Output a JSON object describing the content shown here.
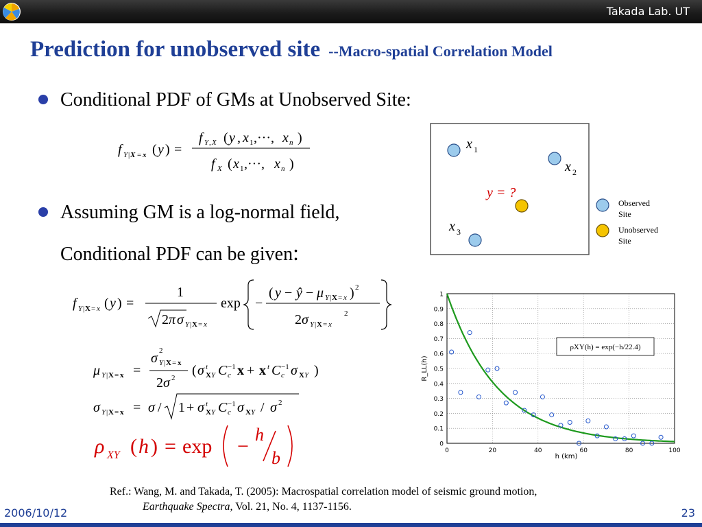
{
  "header": {
    "lab_name": "Takada Lab. UT"
  },
  "title": {
    "main": "Prediction for unobserved site",
    "sub": "--Macro-spatial Correlation Model"
  },
  "bullets": [
    "Conditional PDF of GMs at Unobserved Site:",
    "Assuming GM is a log-normal field,"
  ],
  "continuation": "Conditional PDF can be given",
  "continuation_colon": ":",
  "site_diagram": {
    "labels": {
      "x1": "x",
      "x1_sub": "1",
      "x2": "x",
      "x2_sub": "2",
      "x3": "x",
      "x3_sub": "3",
      "y": "y = ?"
    },
    "legend": [
      {
        "label_line1": "Observed",
        "label_line2": "Site",
        "color": "#9ccbec"
      },
      {
        "label_line1": "Unobserved",
        "label_line2": "Site",
        "color": "#f5c400"
      }
    ]
  },
  "chart_data": {
    "type": "scatter",
    "xlabel": "h (km)",
    "ylabel": "R_LL(h)",
    "x_ticks": [
      "0",
      "20",
      "40",
      "60",
      "80",
      "100"
    ],
    "y_ticks": [
      "0",
      "0.1",
      "0.2",
      "0.3",
      "0.4",
      "0.5",
      "0.6",
      "0.7",
      "0.8",
      "0.9",
      "1"
    ],
    "xlim": [
      0,
      100
    ],
    "ylim": [
      0,
      1
    ],
    "grid": "dotted",
    "annotation": "ρXY(h) = exp(−h/22.4)",
    "series": [
      {
        "kind": "points",
        "color": "#2255cc",
        "x": [
          2,
          6,
          10,
          14,
          18,
          22,
          26,
          30,
          34,
          38,
          42,
          46,
          50,
          54,
          58,
          62,
          66,
          70,
          74,
          78,
          82,
          86,
          90,
          94
        ],
        "y": [
          0.61,
          0.34,
          0.74,
          0.31,
          0.49,
          0.5,
          0.27,
          0.34,
          0.22,
          0.19,
          0.31,
          0.19,
          0.12,
          0.14,
          0.0,
          0.15,
          0.05,
          0.11,
          0.03,
          0.03,
          0.05,
          0.0,
          0.0,
          0.04
        ]
      },
      {
        "kind": "curve",
        "color": "#1e9a1e",
        "b": 22.4,
        "x_start": 0,
        "x_end": 100
      }
    ]
  },
  "references": {
    "line1": "Ref.: Wang, M. and Takada, T. (2005): Macrospatial correlation model of seismic ground motion,",
    "journal": "Earthquake Spectra,",
    "line2_rest": " Vol. 21, No. 4, 1137-1156."
  },
  "footer": {
    "date": "2006/10/12",
    "page": "23"
  },
  "colors": {
    "title": "#1f3f96",
    "formula_red": "#d40000",
    "bullet": "#2a3fa8"
  }
}
